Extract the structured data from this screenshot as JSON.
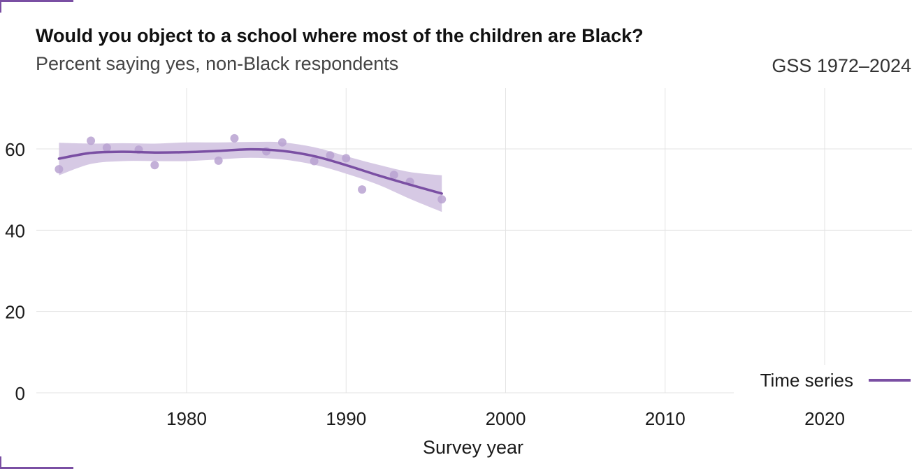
{
  "header": {
    "title": "Would you object to a school where most of the children are Black?",
    "subtitle": "Percent saying yes, non-Black respondents",
    "caption": "GSS 1972–2024"
  },
  "colors": {
    "series": "#7a4fa3",
    "band": "#d4c6e3",
    "points": "#b9a2d1",
    "grid": "#e3e3e3"
  },
  "chart_data": {
    "type": "line",
    "title": "Would you object to a school where most of the children are Black?",
    "subtitle": "Percent saying yes, non-Black respondents",
    "xlabel": "Survey year",
    "ylabel": "",
    "xlim": [
      1971,
      2025
    ],
    "ylim": [
      0,
      60
    ],
    "x_ticks": [
      1980,
      1990,
      2000,
      2010,
      2020
    ],
    "y_ticks": [
      0,
      20,
      40,
      60
    ],
    "grid": true,
    "legend": {
      "placement": "bottom-right",
      "entries": [
        "Time series"
      ]
    },
    "points": [
      {
        "x": 1972,
        "y": 55.0
      },
      {
        "x": 1974,
        "y": 62.0
      },
      {
        "x": 1975,
        "y": 60.3
      },
      {
        "x": 1977,
        "y": 59.8
      },
      {
        "x": 1978,
        "y": 56.0
      },
      {
        "x": 1982,
        "y": 57.1
      },
      {
        "x": 1983,
        "y": 62.6
      },
      {
        "x": 1985,
        "y": 59.4
      },
      {
        "x": 1986,
        "y": 61.6
      },
      {
        "x": 1988,
        "y": 57.0
      },
      {
        "x": 1989,
        "y": 58.4
      },
      {
        "x": 1990,
        "y": 57.7
      },
      {
        "x": 1991,
        "y": 50.0
      },
      {
        "x": 1993,
        "y": 53.6
      },
      {
        "x": 1994,
        "y": 51.9
      },
      {
        "x": 1996,
        "y": 47.6
      }
    ],
    "series": [
      {
        "name": "Time series",
        "x": [
          1972,
          1974,
          1976,
          1978,
          1980,
          1982,
          1984,
          1986,
          1988,
          1990,
          1992,
          1994,
          1996
        ],
        "y": [
          57.6,
          59.0,
          59.3,
          59.1,
          59.2,
          59.5,
          59.9,
          59.5,
          58.2,
          56.0,
          53.5,
          51.2,
          49.0
        ],
        "lower": [
          53.5,
          56.3,
          57.0,
          57.0,
          57.0,
          57.4,
          57.8,
          57.4,
          56.1,
          53.9,
          51.2,
          47.7,
          44.5
        ],
        "upper": [
          61.5,
          61.3,
          61.4,
          61.3,
          61.6,
          61.6,
          61.7,
          61.6,
          60.4,
          58.2,
          56.1,
          54.3,
          53.5
        ]
      }
    ]
  }
}
